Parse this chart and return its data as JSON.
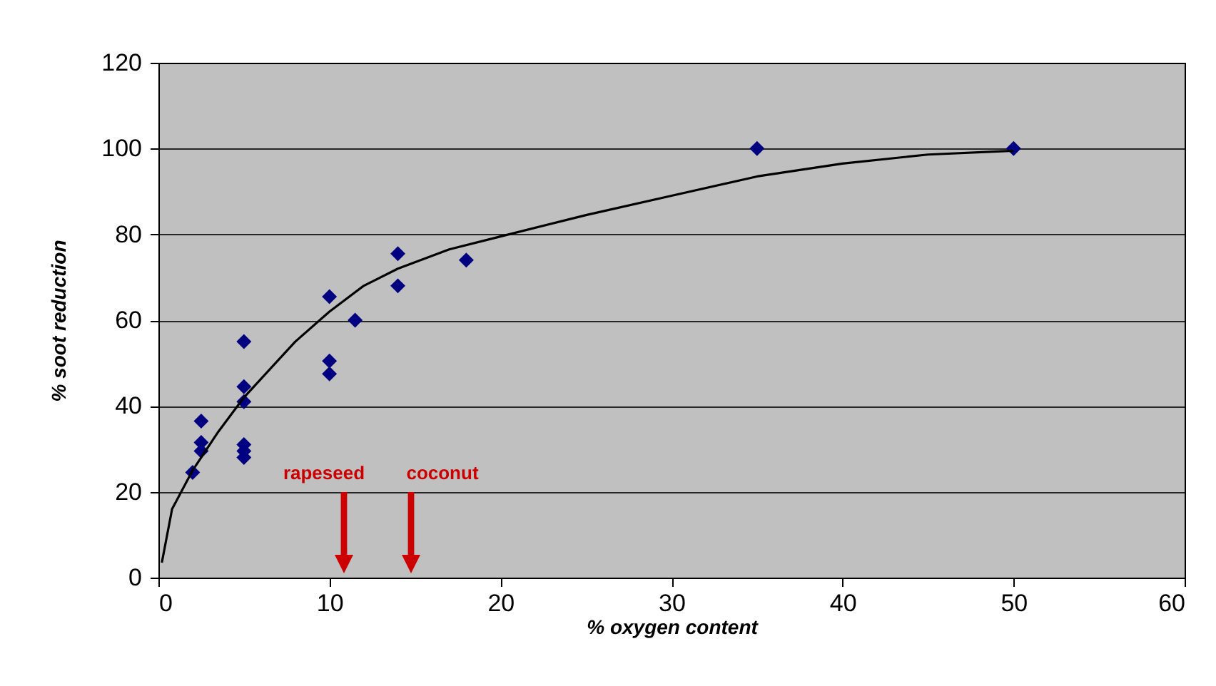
{
  "chart_data": {
    "type": "scatter",
    "xlabel": "% oxygen content",
    "ylabel": "% soot reduction",
    "xlim": [
      0,
      60
    ],
    "xticks": [
      0,
      10,
      20,
      30,
      40,
      50,
      60
    ],
    "ylim": [
      0,
      120
    ],
    "yticks": [
      0,
      20,
      40,
      60,
      80,
      100,
      120
    ],
    "grid": "y",
    "marker": "diamond",
    "series": [
      {
        "color": "#000080",
        "x": [
          2,
          2.5,
          2.5,
          2.5,
          5,
          5,
          5,
          5,
          5,
          5,
          10,
          10,
          10,
          11.5,
          14,
          14,
          18,
          35,
          50
        ],
        "values": [
          24.5,
          29.5,
          31.5,
          36.5,
          28,
          29.5,
          31,
          41,
          44.5,
          55,
          47.5,
          50.5,
          65.5,
          60,
          68,
          75.5,
          74,
          100,
          100
        ]
      },
      {
        "type": "line",
        "color": "#000000",
        "marker": "none",
        "x": [
          0.2,
          0.8,
          2,
          3.5,
          5,
          8,
          10,
          12,
          14,
          17,
          20,
          25,
          30,
          35,
          40,
          45,
          50
        ],
        "values": [
          3.5,
          16,
          25,
          34,
          42,
          55,
          62,
          68,
          72,
          76.5,
          79.5,
          84.5,
          89,
          93.5,
          96.5,
          98.6,
          99.5
        ]
      }
    ],
    "annotations": [
      "rapeseed",
      "coconut"
    ]
  }
}
